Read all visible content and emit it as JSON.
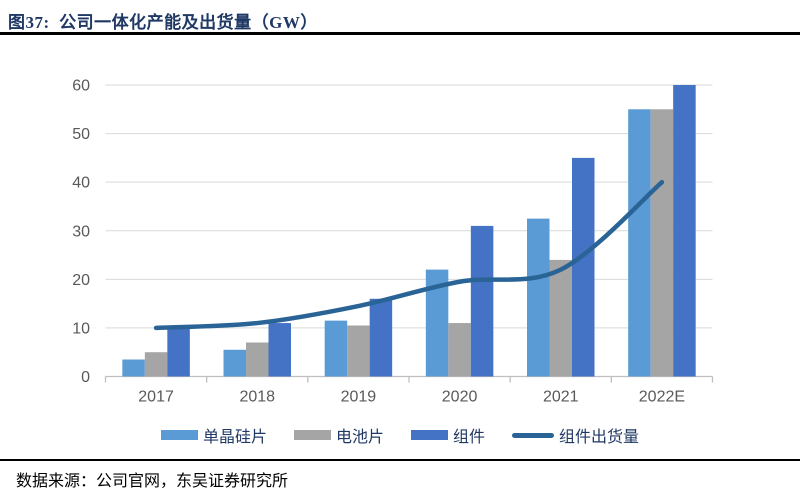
{
  "header": {
    "title": "图37:  公司一体化产能及出货量（GW）"
  },
  "chart_data": {
    "type": "bar",
    "subtype": "grouped-bars-with-line-overlay",
    "title": "公司一体化产能及出货量（GW）",
    "categories": [
      "2017",
      "2018",
      "2019",
      "2020",
      "2021",
      "2022E"
    ],
    "series": [
      {
        "name": "单晶硅片",
        "type": "bar",
        "color": "#5B9BD5",
        "values": [
          3.5,
          5.5,
          11.5,
          22,
          32.5,
          55
        ]
      },
      {
        "name": "电池片",
        "type": "bar",
        "color": "#A5A5A5",
        "values": [
          5,
          7,
          10.5,
          11,
          24,
          55
        ]
      },
      {
        "name": "组件",
        "type": "bar",
        "color": "#4472C4",
        "values": [
          10.5,
          11,
          16,
          31,
          45,
          60
        ]
      },
      {
        "name": "组件出货量",
        "type": "line",
        "color": "#2A6496",
        "values": [
          10,
          11,
          14.5,
          19.5,
          22,
          40
        ]
      }
    ],
    "xlabel": "",
    "ylabel": "",
    "ylim": [
      0,
      60
    ],
    "yticks": [
      0,
      10,
      20,
      30,
      40,
      50,
      60
    ],
    "grid": "horizontal",
    "legend_position": "bottom",
    "style": {
      "grid_color": "#D9D9D9",
      "axis_line_color": "#BFBFBF",
      "axis_text_color": "#595959",
      "title_color": "#1F3864",
      "legend_text_color": "#1F3864"
    }
  },
  "footer": {
    "source": "数据来源：公司官网，东吴证券研究所"
  }
}
